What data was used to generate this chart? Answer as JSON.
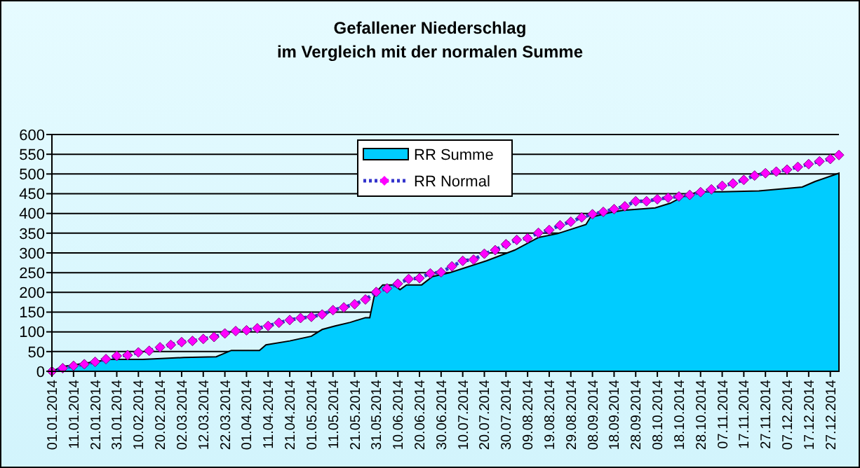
{
  "chart_data": {
    "type": "area",
    "title": "Gefallener Niederschlag",
    "subtitle": "im Vergleich mit der normalen Summe",
    "xlim": [
      "2014-01-01",
      "2014-12-31"
    ],
    "xticks": [
      {
        "value": "2014-01-01",
        "label": "01.01.2014"
      },
      {
        "value": "2014-01-11",
        "label": "11.01.2014"
      },
      {
        "value": "2014-01-21",
        "label": "21.01.2014"
      },
      {
        "value": "2014-01-31",
        "label": "31.01.2014"
      },
      {
        "value": "2014-02-10",
        "label": "10.02.2014"
      },
      {
        "value": "2014-02-20",
        "label": "20.02.2014"
      },
      {
        "value": "2014-03-02",
        "label": "02.03.2014"
      },
      {
        "value": "2014-03-12",
        "label": "12.03.2014"
      },
      {
        "value": "2014-03-22",
        "label": "22.03.2014"
      },
      {
        "value": "2014-04-01",
        "label": "01.04.2014"
      },
      {
        "value": "2014-04-11",
        "label": "11.04.2014"
      },
      {
        "value": "2014-04-21",
        "label": "21.04.2014"
      },
      {
        "value": "2014-05-01",
        "label": "01.05.2014"
      },
      {
        "value": "2014-05-11",
        "label": "11.05.2014"
      },
      {
        "value": "2014-05-21",
        "label": "21.05.2014"
      },
      {
        "value": "2014-05-31",
        "label": "31.05.2014"
      },
      {
        "value": "2014-06-10",
        "label": "10.06.2014"
      },
      {
        "value": "2014-06-20",
        "label": "20.06.2014"
      },
      {
        "value": "2014-06-30",
        "label": "30.06.2014"
      },
      {
        "value": "2014-07-10",
        "label": "10.07.2014"
      },
      {
        "value": "2014-07-20",
        "label": "20.07.2014"
      },
      {
        "value": "2014-07-30",
        "label": "30.07.2014"
      },
      {
        "value": "2014-08-09",
        "label": "09.08.2014"
      },
      {
        "value": "2014-08-19",
        "label": "19.08.2014"
      },
      {
        "value": "2014-08-29",
        "label": "29.08.2014"
      },
      {
        "value": "2014-09-08",
        "label": "08.09.2014"
      },
      {
        "value": "2014-09-18",
        "label": "18.09.2014"
      },
      {
        "value": "2014-09-28",
        "label": "28.09.2014"
      },
      {
        "value": "2014-10-08",
        "label": "08.10.2014"
      },
      {
        "value": "2014-10-18",
        "label": "18.10.2014"
      },
      {
        "value": "2014-10-28",
        "label": "28.10.2014"
      },
      {
        "value": "2014-11-07",
        "label": "07.11.2014"
      },
      {
        "value": "2014-11-17",
        "label": "17.11.2014"
      },
      {
        "value": "2014-11-27",
        "label": "27.11.2014"
      },
      {
        "value": "2014-12-07",
        "label": "07.12.2014"
      },
      {
        "value": "2014-12-17",
        "label": "17.12.2014"
      },
      {
        "value": "2014-12-27",
        "label": "27.12.2014"
      }
    ],
    "ylim": [
      0,
      600
    ],
    "yticks": [
      0,
      50,
      100,
      150,
      200,
      250,
      300,
      350,
      400,
      450,
      500,
      550,
      600
    ],
    "grid": "y",
    "legend": "top",
    "series": [
      {
        "name": "RR Summe",
        "color": "#00ccff",
        "x": [
          "2014-01-01",
          "2014-01-06",
          "2014-01-28",
          "2014-02-12",
          "2014-03-03",
          "2014-03-18",
          "2014-03-25",
          "2014-04-07",
          "2014-04-10",
          "2014-04-21",
          "2014-05-01",
          "2014-05-06",
          "2014-05-12",
          "2014-05-19",
          "2014-05-26",
          "2014-05-28",
          "2014-05-30",
          "2014-06-01",
          "2014-06-03",
          "2014-06-08",
          "2014-06-11",
          "2014-06-14",
          "2014-06-21",
          "2014-06-26",
          "2014-07-04",
          "2014-07-21",
          "2014-08-03",
          "2014-08-14",
          "2014-08-23",
          "2014-09-05",
          "2014-09-07",
          "2014-09-16",
          "2014-09-22",
          "2014-10-07",
          "2014-10-14",
          "2014-10-20",
          "2014-10-27",
          "2014-11-07",
          "2014-11-24",
          "2014-12-14",
          "2014-12-20",
          "2014-12-31"
        ],
        "values": [
          0,
          12,
          30,
          30,
          35,
          37,
          53,
          53,
          67,
          77,
          89,
          106,
          115,
          124,
          136,
          136,
          189,
          207,
          219,
          219,
          207,
          219,
          219,
          240,
          250,
          280,
          307,
          339,
          349,
          372,
          390,
          402,
          408,
          414,
          426,
          443,
          455,
          455,
          457,
          467,
          481,
          502
        ]
      },
      {
        "name": "RR Normal",
        "type": "line",
        "color": "#ff00ff",
        "marker": "diamond",
        "line_style": "dotted",
        "x": [
          "2014-01-01",
          "2014-01-06",
          "2014-01-11",
          "2014-01-16",
          "2014-01-21",
          "2014-01-26",
          "2014-01-31",
          "2014-02-05",
          "2014-02-10",
          "2014-02-15",
          "2014-02-20",
          "2014-02-25",
          "2014-03-02",
          "2014-03-07",
          "2014-03-12",
          "2014-03-17",
          "2014-03-22",
          "2014-03-27",
          "2014-04-01",
          "2014-04-06",
          "2014-04-11",
          "2014-04-16",
          "2014-04-21",
          "2014-04-26",
          "2014-05-01",
          "2014-05-06",
          "2014-05-11",
          "2014-05-16",
          "2014-05-21",
          "2014-05-26",
          "2014-05-31",
          "2014-06-05",
          "2014-06-10",
          "2014-06-15",
          "2014-06-20",
          "2014-06-25",
          "2014-06-30",
          "2014-07-05",
          "2014-07-10",
          "2014-07-15",
          "2014-07-20",
          "2014-07-25",
          "2014-07-30",
          "2014-08-04",
          "2014-08-09",
          "2014-08-14",
          "2014-08-19",
          "2014-08-24",
          "2014-08-29",
          "2014-09-03",
          "2014-09-08",
          "2014-09-13",
          "2014-09-18",
          "2014-09-23",
          "2014-09-28",
          "2014-10-03",
          "2014-10-08",
          "2014-10-13",
          "2014-10-18",
          "2014-10-23",
          "2014-10-28",
          "2014-11-02",
          "2014-11-07",
          "2014-11-12",
          "2014-11-17",
          "2014-11-22",
          "2014-11-27",
          "2014-12-02",
          "2014-12-07",
          "2014-12-12",
          "2014-12-17",
          "2014-12-22",
          "2014-12-27",
          "2014-12-31"
        ],
        "values": [
          0,
          8,
          14,
          18,
          24,
          31,
          39,
          41,
          48,
          52,
          61,
          67,
          74,
          77,
          82,
          87,
          96,
          102,
          104,
          109,
          115,
          123,
          130,
          135,
          138,
          144,
          155,
          162,
          170,
          182,
          201,
          210,
          222,
          234,
          236,
          248,
          251,
          266,
          280,
          283,
          298,
          307,
          322,
          333,
          337,
          351,
          358,
          370,
          379,
          390,
          398,
          404,
          411,
          418,
          431,
          431,
          436,
          440,
          443,
          447,
          454,
          461,
          470,
          476,
          485,
          496,
          502,
          506,
          511,
          518,
          525,
          532,
          538,
          548
        ]
      }
    ]
  }
}
